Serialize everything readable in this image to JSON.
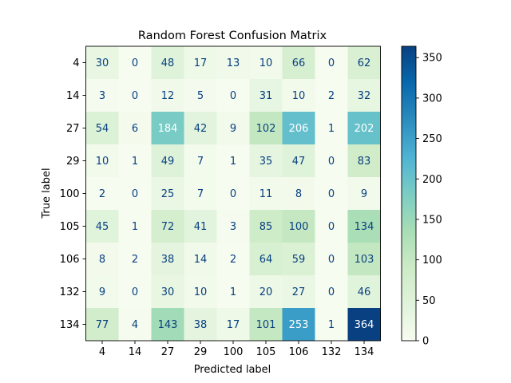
{
  "chart_data": {
    "type": "heatmap",
    "title": "Random Forest Confusion Matrix",
    "xlabel": "Predicted label",
    "ylabel": "True label",
    "row_labels": [
      "4",
      "14",
      "27",
      "29",
      "100",
      "105",
      "106",
      "132",
      "134"
    ],
    "col_labels": [
      "4",
      "14",
      "27",
      "29",
      "100",
      "105",
      "106",
      "132",
      "134"
    ],
    "values": [
      [
        30,
        0,
        48,
        17,
        13,
        10,
        66,
        0,
        62
      ],
      [
        3,
        0,
        12,
        5,
        0,
        31,
        10,
        2,
        32
      ],
      [
        54,
        6,
        184,
        42,
        9,
        102,
        206,
        1,
        202
      ],
      [
        10,
        1,
        49,
        7,
        1,
        35,
        47,
        0,
        83
      ],
      [
        2,
        0,
        25,
        7,
        0,
        11,
        8,
        0,
        9
      ],
      [
        45,
        1,
        72,
        41,
        3,
        85,
        100,
        0,
        134
      ],
      [
        8,
        2,
        38,
        14,
        2,
        64,
        59,
        0,
        103
      ],
      [
        9,
        0,
        30,
        10,
        1,
        20,
        27,
        0,
        46
      ],
      [
        77,
        4,
        143,
        38,
        17,
        101,
        253,
        1,
        364
      ]
    ],
    "colormap": "GnBu",
    "vmin": 0,
    "vmax": 364,
    "colorbar_ticks": [
      0,
      50,
      100,
      150,
      200,
      250,
      300,
      350
    ],
    "grid": false
  }
}
